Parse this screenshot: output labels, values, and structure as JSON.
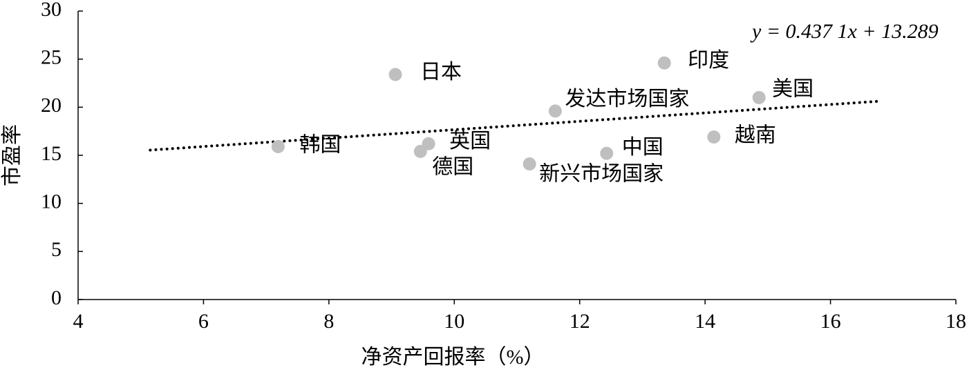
{
  "chart_data": {
    "type": "scatter",
    "xlabel": "净资产回报率（%）",
    "ylabel": "市盈率",
    "xlim": [
      4,
      18
    ],
    "xticks": [
      4,
      6,
      8,
      10,
      12,
      14,
      16,
      18
    ],
    "ylim": [
      0,
      30
    ],
    "yticks": [
      0,
      5,
      10,
      15,
      20,
      25,
      30
    ],
    "color": "#bfbfbf",
    "labels": [
      "韩国",
      "日本",
      "德国",
      "英国",
      "新兴市场国家",
      "发达市场国家",
      "中国",
      "印度",
      "越南",
      "美国"
    ],
    "x": [
      7.19,
      9.06,
      9.46,
      9.59,
      11.2,
      11.61,
      12.43,
      13.35,
      14.14,
      14.86
    ],
    "values": [
      15.9,
      23.4,
      15.4,
      16.2,
      14.1,
      19.6,
      15.2,
      24.6,
      16.9,
      21.0
    ],
    "trendline": {
      "slope": 0.4371,
      "intercept": 13.289,
      "x": [
        5.15,
        16.75
      ],
      "label": "y = 0.437 1x + 13.289",
      "color": "#000000"
    }
  }
}
